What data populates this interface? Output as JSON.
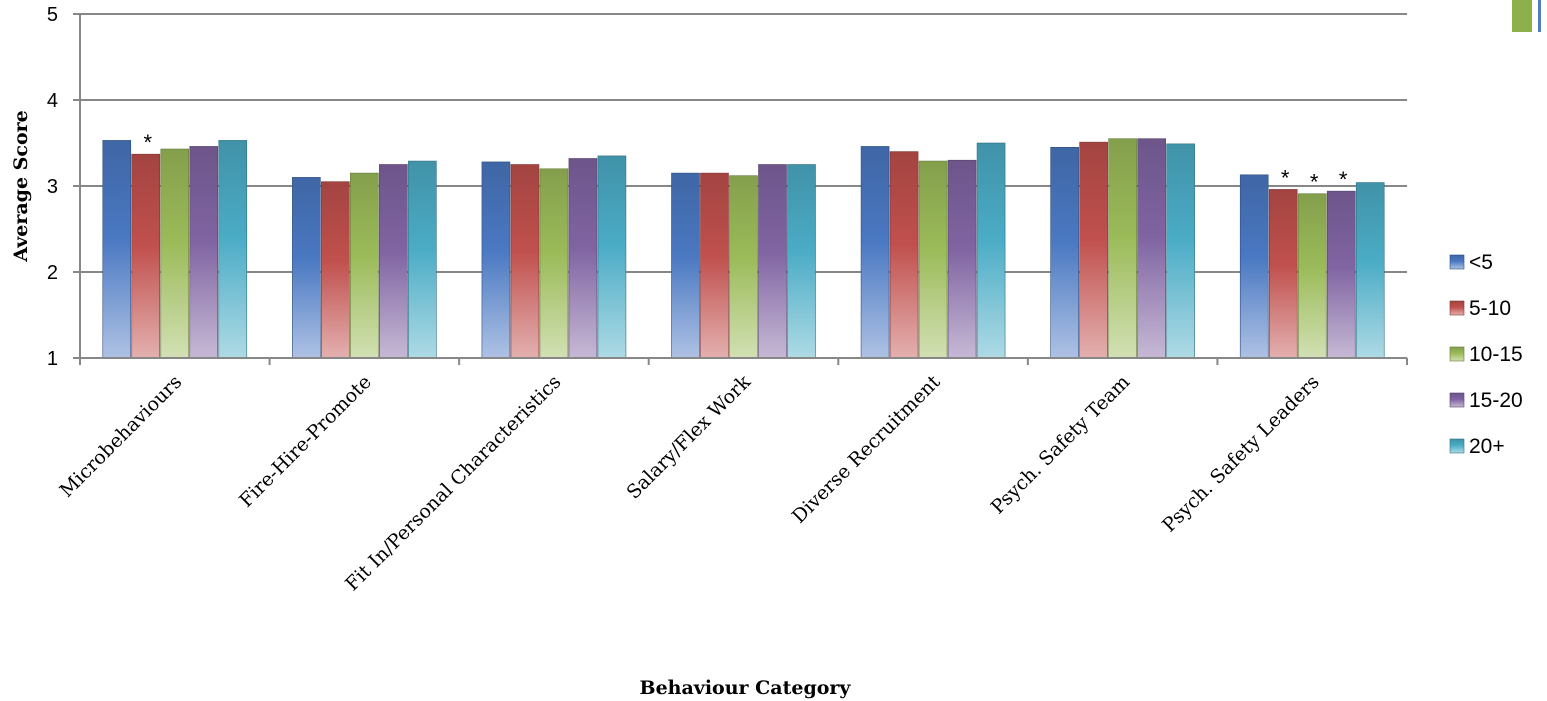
{
  "chart_data": {
    "type": "bar",
    "title": "",
    "xlabel": "Behaviour Category",
    "ylabel": "Average Score",
    "ylim": [
      1,
      5
    ],
    "yticks": [
      1,
      2,
      3,
      4,
      5
    ],
    "grid": true,
    "legend_position": "right",
    "categories": [
      "Microbehaviours",
      "Fire-Hire-Promote",
      "Fit In/Personal Characteristics",
      "Salary/Flex Work",
      "Diverse Recruitment",
      "Psych. Safety Team",
      "Psych. Safety Leaders"
    ],
    "series": [
      {
        "name": "<5",
        "color": "#4a78c2",
        "values": [
          3.53,
          3.1,
          3.28,
          3.15,
          3.46,
          3.45,
          3.13
        ]
      },
      {
        "name": "5-10",
        "color": "#c0504d",
        "values": [
          3.37,
          3.05,
          3.25,
          3.15,
          3.4,
          3.51,
          2.96
        ]
      },
      {
        "name": "10-15",
        "color": "#9bbb59",
        "values": [
          3.43,
          3.15,
          3.2,
          3.12,
          3.29,
          3.55,
          2.91
        ]
      },
      {
        "name": "15-20",
        "color": "#8064a2",
        "values": [
          3.46,
          3.25,
          3.32,
          3.25,
          3.3,
          3.55,
          2.94
        ]
      },
      {
        "name": "20+",
        "color": "#4bacc6",
        "values": [
          3.53,
          3.29,
          3.35,
          3.25,
          3.5,
          3.49,
          3.04
        ]
      }
    ],
    "annotations": [
      {
        "text": "*",
        "category": 0,
        "series": 1
      },
      {
        "text": "*",
        "category": 6,
        "series": 1
      },
      {
        "text": "*",
        "category": 6,
        "series": 2
      },
      {
        "text": "*",
        "category": 6,
        "series": 3
      }
    ]
  }
}
